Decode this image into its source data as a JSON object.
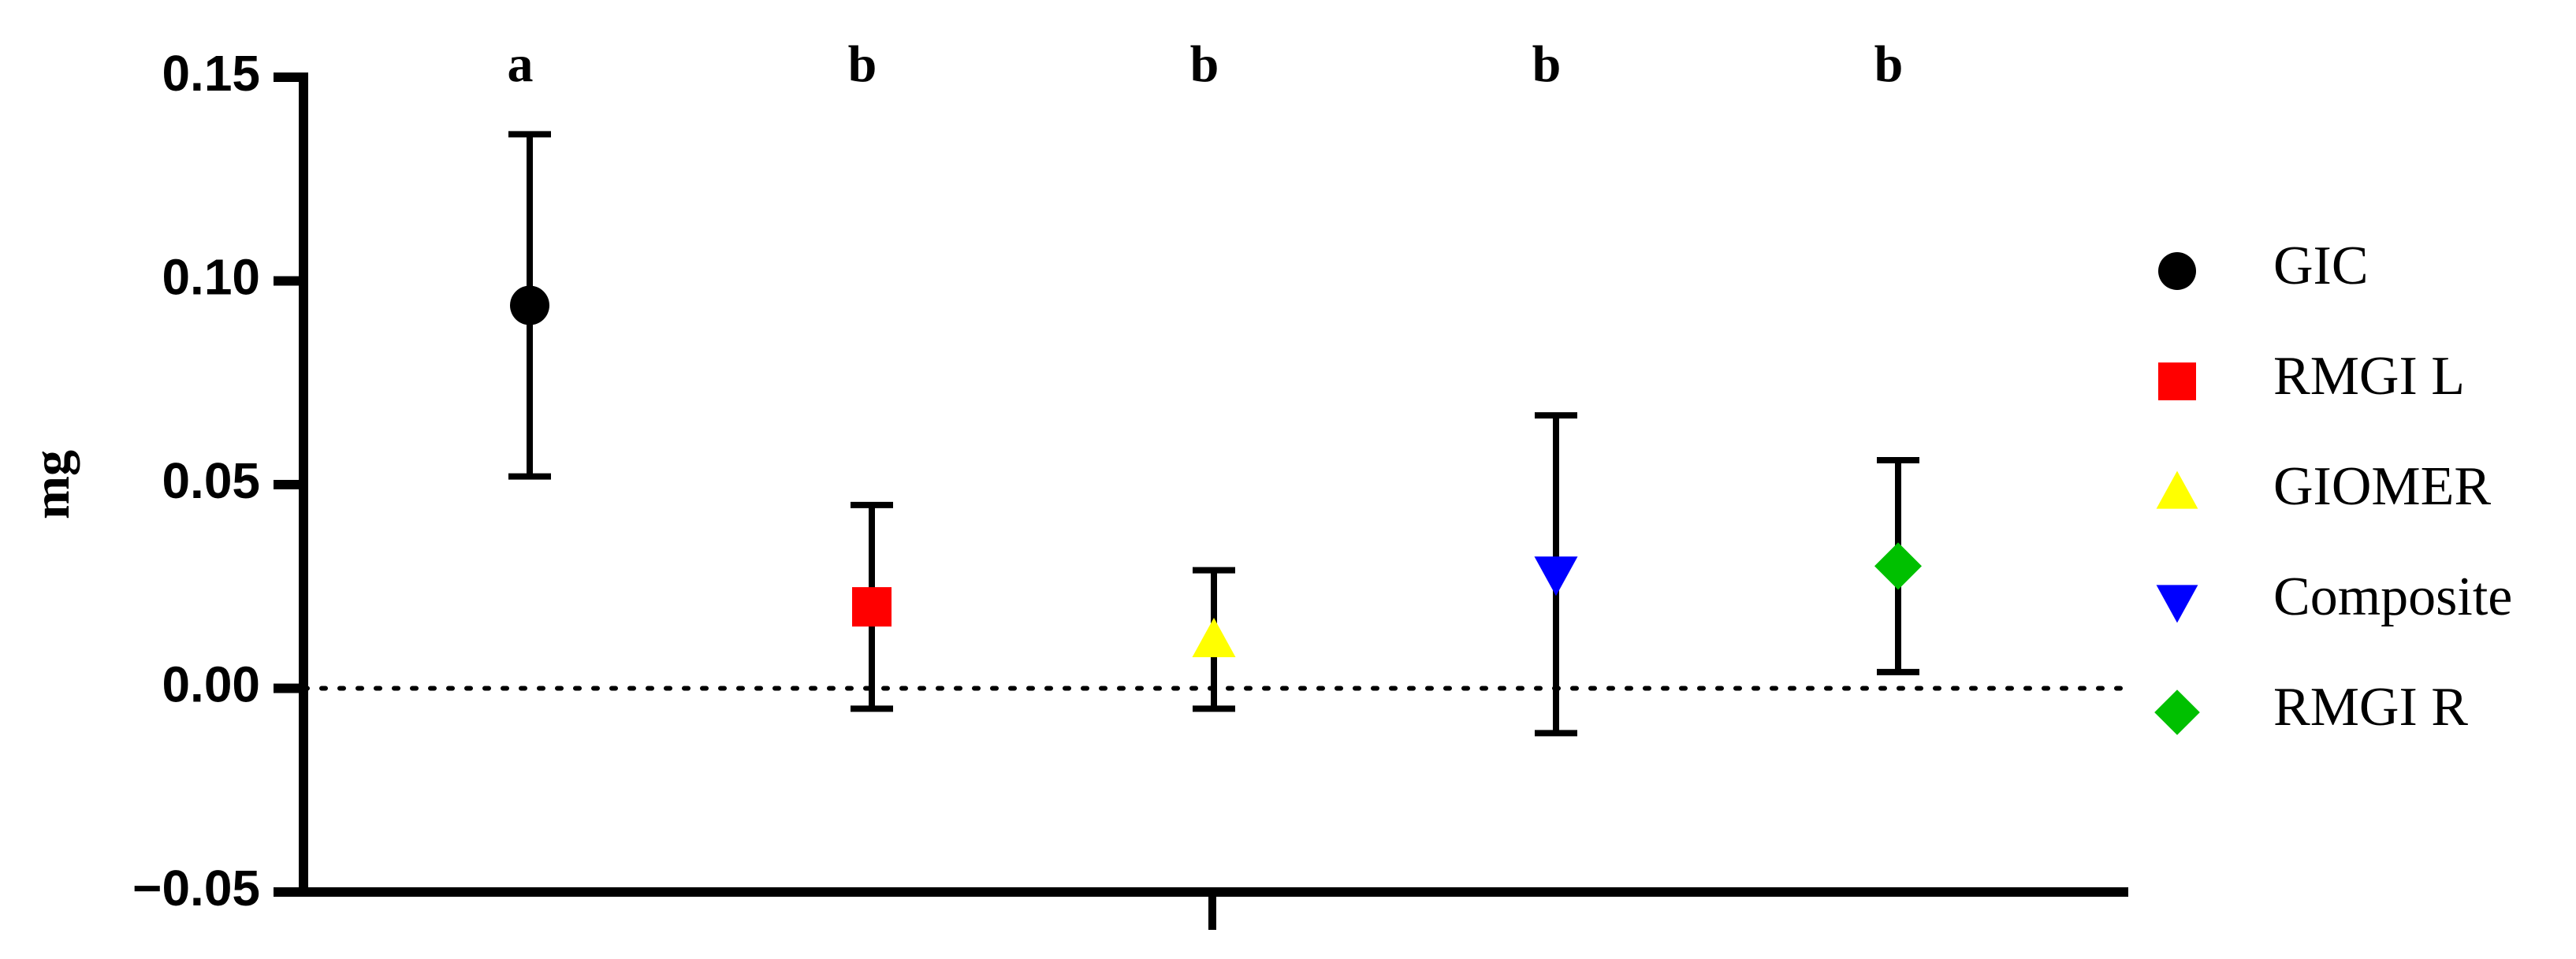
{
  "chart_data": {
    "type": "errorbar",
    "ylabel": "mg",
    "ylim": [
      -0.05,
      0.15
    ],
    "yticks": [
      {
        "value": -0.05,
        "label": "−0.05"
      },
      {
        "value": 0,
        "label": "0.00"
      },
      0.05,
      {
        "value": 0.1,
        "label": "0.10"
      },
      0.15
    ],
    "zero_line": true,
    "legend": "right",
    "series": [
      {
        "name": "GIC",
        "color": "#000000",
        "marker": "circle",
        "values": [
          0.094
        ],
        "errors": [
          0.042
        ],
        "letter": "a"
      },
      {
        "name": "RMGI L",
        "color": "#ff0000",
        "marker": "square",
        "values": [
          0.02
        ],
        "errors": [
          0.025
        ],
        "letter": "b"
      },
      {
        "name": "GIOMER",
        "color": "#ffff00",
        "marker": "triangle-up",
        "values": [
          0.012
        ],
        "errors": [
          0.017
        ],
        "letter": "b"
      },
      {
        "name": "Composite",
        "color": "#0000ff",
        "marker": "triangle-down",
        "values": [
          0.028
        ],
        "errors": [
          0.039
        ],
        "letter": "b"
      },
      {
        "name": "RMGI R",
        "color": "#00c000",
        "marker": "diamond",
        "values": [
          0.03
        ],
        "errors": [
          0.026
        ],
        "letter": "b"
      }
    ]
  }
}
